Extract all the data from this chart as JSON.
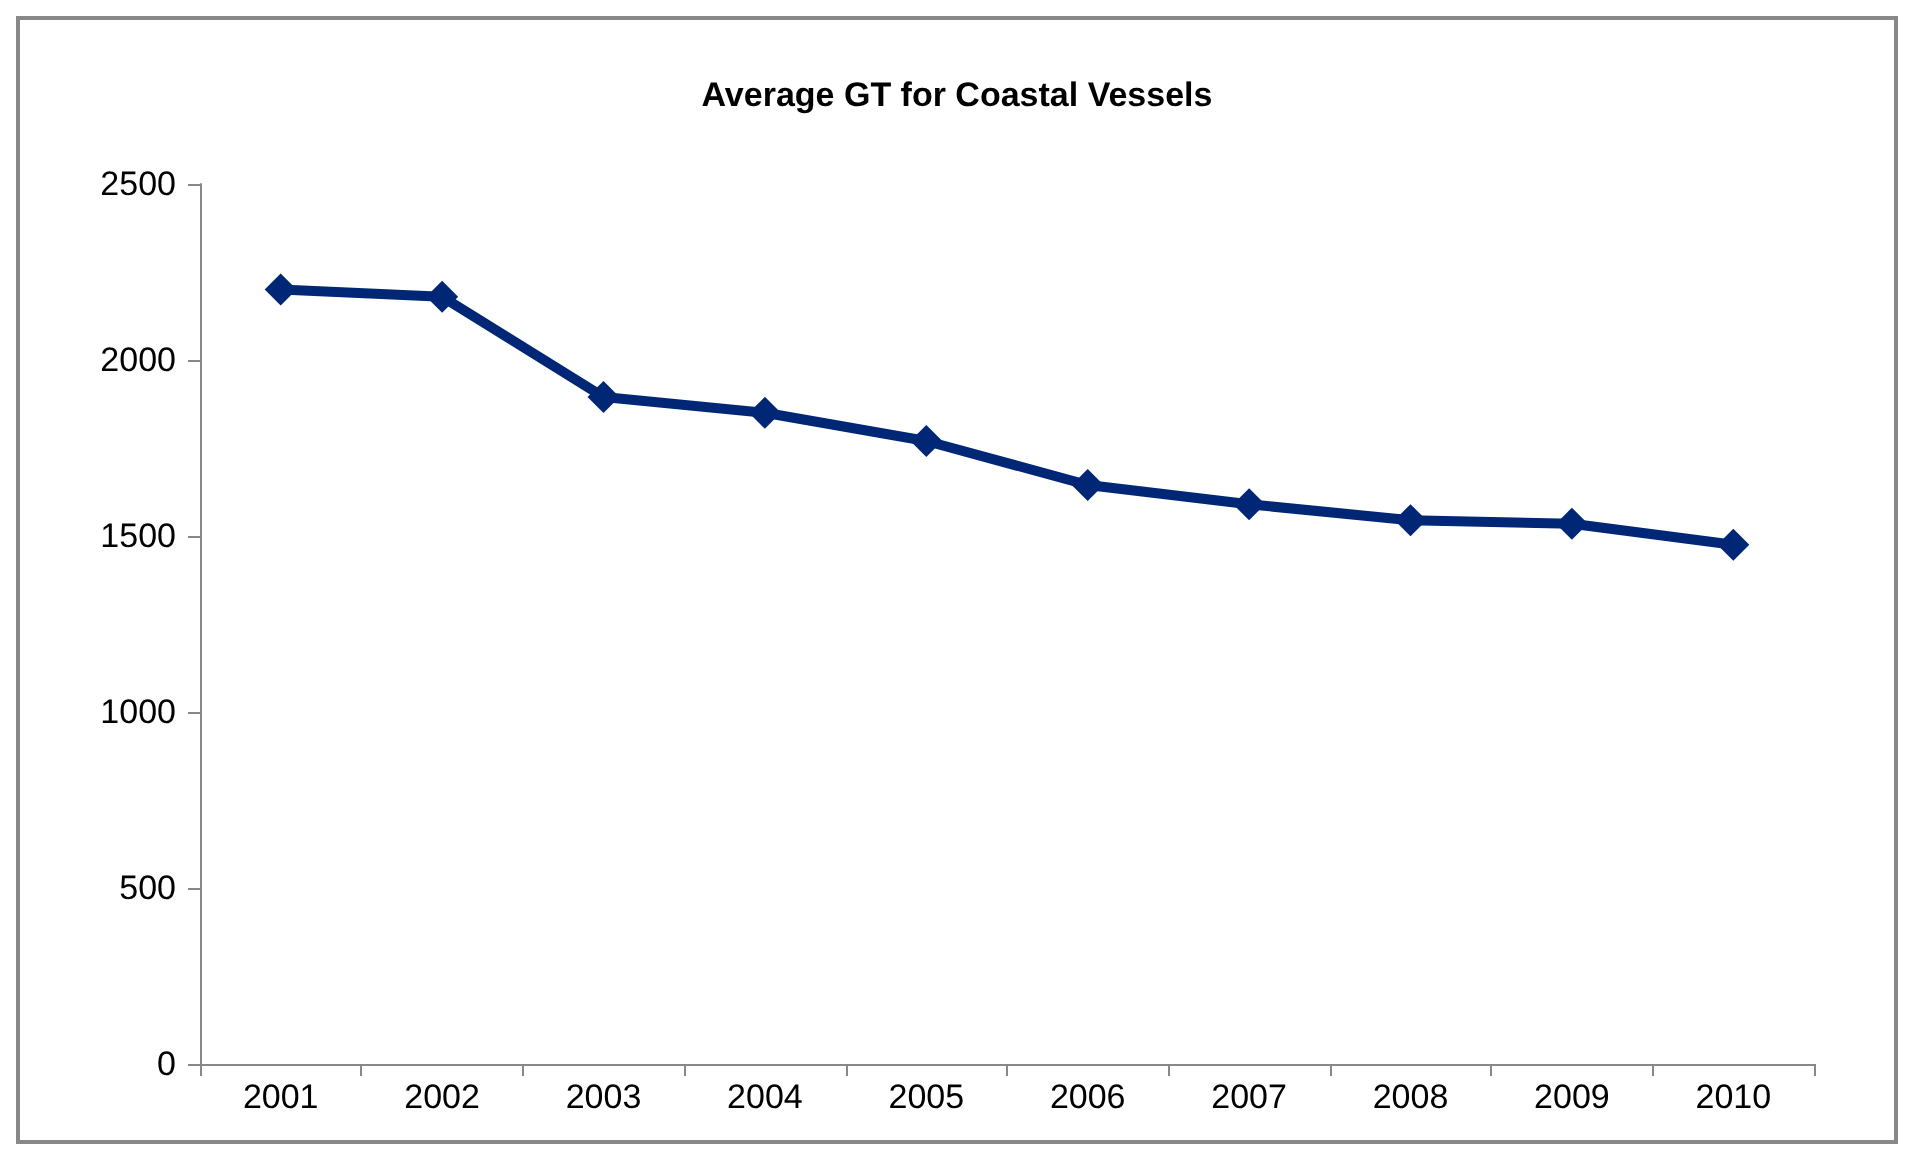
{
  "chart_data": {
    "type": "line",
    "title": "Average GT for Coastal Vessels",
    "categories": [
      "2001",
      "2002",
      "2003",
      "2004",
      "2005",
      "2006",
      "2007",
      "2008",
      "2009",
      "2010"
    ],
    "series": [
      {
        "color": "#002776",
        "values": [
          2200,
          2180,
          1895,
          1850,
          1770,
          1645,
          1590,
          1545,
          1535,
          1475
        ]
      }
    ],
    "ylim": [
      0,
      2500
    ],
    "yticks": [
      0,
      500,
      1000,
      1500,
      2000,
      2500
    ],
    "marker": "diamond",
    "line_style": "solid"
  }
}
